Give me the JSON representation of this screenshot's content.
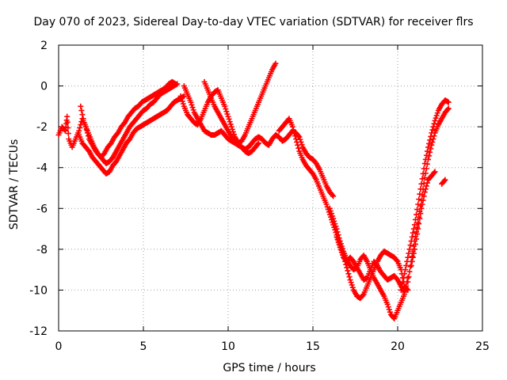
{
  "chart_data": {
    "type": "scatter",
    "title": "Day 070 of 2023, Sidereal Day-to-day VTEC variation (SDTVAR) for receiver flrs",
    "xlabel": "GPS time / hours",
    "ylabel": "SDTVAR / TECUs",
    "xlim": [
      0,
      25
    ],
    "ylim": [
      -12,
      2
    ],
    "xticks": [
      "0",
      "5",
      "10",
      "15",
      "20",
      "25"
    ],
    "yticks": [
      "2",
      "0",
      "-2",
      "-4",
      "-6",
      "-8",
      "-10",
      "-12"
    ],
    "grid": true,
    "marker": "+",
    "color": "#ff0000",
    "series": [
      {
        "points": [
          [
            0.0,
            -2.4
          ],
          [
            0.2,
            -2.0
          ],
          [
            0.4,
            -2.2
          ],
          [
            0.5,
            -1.5
          ],
          [
            0.6,
            -2.6
          ],
          [
            0.8,
            -3.0
          ],
          [
            1.0,
            -2.6
          ],
          [
            1.2,
            -2.2
          ],
          [
            1.4,
            -1.6
          ],
          [
            1.6,
            -2.0
          ],
          [
            1.8,
            -2.6
          ],
          [
            2.0,
            -2.9
          ],
          [
            2.2,
            -3.2
          ],
          [
            2.4,
            -3.4
          ],
          [
            2.6,
            -3.6
          ],
          [
            2.8,
            -3.8
          ],
          [
            3.0,
            -3.7
          ],
          [
            3.2,
            -3.5
          ],
          [
            3.4,
            -3.2
          ],
          [
            3.6,
            -2.9
          ],
          [
            3.8,
            -2.6
          ],
          [
            4.0,
            -2.3
          ],
          [
            4.2,
            -2.0
          ],
          [
            4.4,
            -1.8
          ],
          [
            4.6,
            -1.6
          ],
          [
            4.8,
            -1.4
          ],
          [
            5.0,
            -1.2
          ],
          [
            5.2,
            -1.1
          ],
          [
            5.4,
            -0.9
          ],
          [
            5.6,
            -0.8
          ],
          [
            5.8,
            -0.6
          ],
          [
            6.0,
            -0.4
          ],
          [
            6.2,
            -0.3
          ],
          [
            6.4,
            -0.2
          ],
          [
            6.6,
            -0.1
          ],
          [
            6.8,
            0.0
          ],
          [
            7.0,
            0.1
          ]
        ]
      },
      {
        "points": [
          [
            1.2,
            -2.4
          ],
          [
            1.4,
            -2.8
          ],
          [
            1.6,
            -3.0
          ],
          [
            1.8,
            -3.2
          ],
          [
            2.0,
            -3.5
          ],
          [
            2.2,
            -3.7
          ],
          [
            2.4,
            -3.9
          ],
          [
            2.6,
            -4.1
          ],
          [
            2.8,
            -4.3
          ],
          [
            3.0,
            -4.2
          ],
          [
            3.2,
            -3.9
          ],
          [
            3.4,
            -3.7
          ],
          [
            3.6,
            -3.4
          ],
          [
            3.8,
            -3.1
          ],
          [
            4.0,
            -2.8
          ],
          [
            4.2,
            -2.6
          ],
          [
            4.4,
            -2.3
          ],
          [
            4.6,
            -2.1
          ],
          [
            4.8,
            -2.0
          ],
          [
            5.0,
            -1.9
          ],
          [
            5.2,
            -1.8
          ],
          [
            5.4,
            -1.7
          ],
          [
            5.6,
            -1.6
          ],
          [
            5.8,
            -1.5
          ],
          [
            6.0,
            -1.4
          ],
          [
            6.2,
            -1.3
          ],
          [
            6.4,
            -1.2
          ],
          [
            6.6,
            -1.0
          ],
          [
            6.8,
            -0.8
          ],
          [
            7.0,
            -0.7
          ],
          [
            7.2,
            -0.6
          ],
          [
            7.4,
            -0.5
          ]
        ]
      },
      {
        "points": [
          [
            1.3,
            -1.0
          ],
          [
            1.5,
            -1.8
          ],
          [
            1.7,
            -2.2
          ],
          [
            1.9,
            -2.6
          ],
          [
            2.1,
            -3.0
          ],
          [
            2.3,
            -3.3
          ],
          [
            2.5,
            -3.5
          ],
          [
            2.7,
            -3.3
          ],
          [
            2.9,
            -3.0
          ],
          [
            3.1,
            -2.8
          ],
          [
            3.3,
            -2.5
          ],
          [
            3.5,
            -2.3
          ],
          [
            3.7,
            -2.0
          ],
          [
            3.9,
            -1.8
          ],
          [
            4.1,
            -1.5
          ],
          [
            4.3,
            -1.3
          ],
          [
            4.5,
            -1.1
          ],
          [
            4.7,
            -1.0
          ],
          [
            4.9,
            -0.8
          ],
          [
            5.1,
            -0.7
          ],
          [
            5.3,
            -0.6
          ],
          [
            5.5,
            -0.5
          ],
          [
            5.7,
            -0.4
          ],
          [
            5.9,
            -0.3
          ],
          [
            6.1,
            -0.2
          ],
          [
            6.3,
            -0.1
          ],
          [
            6.5,
            0.1
          ],
          [
            6.7,
            0.2
          ],
          [
            6.9,
            0.1
          ]
        ]
      },
      {
        "points": [
          [
            7.4,
            0.0
          ],
          [
            7.6,
            -0.4
          ],
          [
            7.8,
            -0.8
          ],
          [
            8.0,
            -1.3
          ],
          [
            8.2,
            -1.6
          ],
          [
            8.4,
            -1.9
          ],
          [
            8.6,
            -2.2
          ],
          [
            8.8,
            -2.3
          ],
          [
            9.0,
            -2.4
          ],
          [
            9.2,
            -2.4
          ],
          [
            9.4,
            -2.3
          ],
          [
            9.6,
            -2.2
          ],
          [
            9.8,
            -2.4
          ],
          [
            10.0,
            -2.6
          ],
          [
            10.2,
            -2.7
          ],
          [
            10.4,
            -2.8
          ],
          [
            10.6,
            -2.9
          ],
          [
            10.8,
            -3.0
          ],
          [
            11.0,
            -3.1
          ],
          [
            11.2,
            -3.0
          ],
          [
            11.4,
            -2.8
          ],
          [
            11.6,
            -2.6
          ],
          [
            11.8,
            -2.5
          ],
          [
            12.0,
            -2.6
          ],
          [
            12.2,
            -2.8
          ],
          [
            12.4,
            -2.9
          ],
          [
            12.6,
            -2.6
          ],
          [
            12.8,
            -2.4
          ],
          [
            13.0,
            -2.5
          ],
          [
            13.2,
            -2.7
          ],
          [
            13.4,
            -2.6
          ],
          [
            13.6,
            -2.4
          ],
          [
            13.8,
            -2.2
          ],
          [
            14.0,
            -2.3
          ],
          [
            14.2,
            -2.5
          ],
          [
            14.4,
            -3.0
          ],
          [
            14.6,
            -3.3
          ],
          [
            14.8,
            -3.5
          ],
          [
            15.0,
            -3.6
          ],
          [
            15.2,
            -3.8
          ],
          [
            15.4,
            -4.1
          ],
          [
            15.6,
            -4.5
          ],
          [
            15.8,
            -4.9
          ],
          [
            16.0,
            -5.2
          ],
          [
            16.2,
            -5.4
          ]
        ]
      },
      {
        "points": [
          [
            7.2,
            -0.5
          ],
          [
            7.4,
            -1.0
          ],
          [
            7.6,
            -1.4
          ],
          [
            7.8,
            -1.6
          ],
          [
            8.0,
            -1.8
          ],
          [
            8.2,
            -1.9
          ],
          [
            8.4,
            -1.6
          ],
          [
            8.6,
            -1.2
          ],
          [
            8.8,
            -0.8
          ],
          [
            9.0,
            -0.5
          ],
          [
            9.2,
            -0.3
          ],
          [
            9.4,
            -0.2
          ],
          [
            9.6,
            -0.6
          ],
          [
            9.8,
            -1.0
          ],
          [
            10.0,
            -1.5
          ],
          [
            10.2,
            -2.0
          ],
          [
            10.4,
            -2.5
          ],
          [
            10.6,
            -2.8
          ],
          [
            10.8,
            -2.7
          ],
          [
            11.0,
            -2.4
          ],
          [
            11.2,
            -2.0
          ],
          [
            11.4,
            -1.6
          ],
          [
            11.6,
            -1.2
          ],
          [
            11.8,
            -0.8
          ],
          [
            12.0,
            -0.4
          ],
          [
            12.2,
            0.0
          ],
          [
            12.4,
            0.4
          ],
          [
            12.6,
            0.8
          ],
          [
            12.8,
            1.1
          ]
        ]
      },
      {
        "points": [
          [
            8.6,
            0.2
          ],
          [
            8.8,
            -0.2
          ],
          [
            9.0,
            -0.6
          ],
          [
            9.2,
            -1.0
          ],
          [
            9.4,
            -1.3
          ],
          [
            9.6,
            -1.6
          ],
          [
            9.8,
            -1.9
          ],
          [
            10.0,
            -2.2
          ],
          [
            10.2,
            -2.5
          ],
          [
            10.4,
            -2.7
          ],
          [
            10.6,
            -2.9
          ],
          [
            10.8,
            -3.0
          ],
          [
            11.0,
            -3.2
          ],
          [
            11.2,
            -3.3
          ],
          [
            11.4,
            -3.2
          ],
          [
            11.6,
            -3.0
          ],
          [
            11.8,
            -2.8
          ]
        ]
      },
      {
        "points": [
          [
            13.0,
            -2.2
          ],
          [
            13.2,
            -2.0
          ],
          [
            13.4,
            -1.8
          ],
          [
            13.6,
            -1.6
          ],
          [
            13.8,
            -2.0
          ],
          [
            14.0,
            -2.6
          ],
          [
            14.2,
            -3.2
          ],
          [
            14.4,
            -3.6
          ],
          [
            14.6,
            -3.9
          ],
          [
            14.8,
            -4.1
          ],
          [
            15.0,
            -4.3
          ],
          [
            15.2,
            -4.6
          ],
          [
            15.4,
            -5.0
          ],
          [
            15.6,
            -5.4
          ],
          [
            15.8,
            -5.8
          ],
          [
            16.0,
            -6.3
          ],
          [
            16.2,
            -6.8
          ],
          [
            16.4,
            -7.3
          ],
          [
            16.6,
            -7.8
          ],
          [
            16.8,
            -8.3
          ],
          [
            17.0,
            -8.9
          ],
          [
            17.2,
            -9.5
          ],
          [
            17.4,
            -10.0
          ],
          [
            17.6,
            -10.3
          ],
          [
            17.8,
            -10.4
          ],
          [
            18.0,
            -10.2
          ],
          [
            18.2,
            -9.8
          ],
          [
            18.4,
            -9.4
          ],
          [
            18.6,
            -9.0
          ],
          [
            18.8,
            -8.6
          ],
          [
            19.0,
            -8.3
          ],
          [
            19.2,
            -8.1
          ],
          [
            19.4,
            -8.2
          ],
          [
            19.6,
            -8.3
          ],
          [
            19.8,
            -8.4
          ],
          [
            20.0,
            -8.6
          ],
          [
            20.2,
            -9.0
          ],
          [
            20.4,
            -9.8
          ],
          [
            20.6,
            -10.0
          ]
        ]
      },
      {
        "points": [
          [
            16.0,
            -6.0
          ],
          [
            16.2,
            -6.5
          ],
          [
            16.4,
            -7.0
          ],
          [
            16.6,
            -7.6
          ],
          [
            16.8,
            -8.1
          ],
          [
            17.0,
            -8.5
          ],
          [
            17.2,
            -8.8
          ],
          [
            17.4,
            -9.0
          ],
          [
            17.6,
            -8.9
          ],
          [
            17.8,
            -8.5
          ],
          [
            18.0,
            -8.3
          ],
          [
            18.2,
            -8.6
          ],
          [
            18.4,
            -9.0
          ],
          [
            18.6,
            -9.4
          ],
          [
            18.8,
            -9.7
          ],
          [
            19.0,
            -10.0
          ],
          [
            19.2,
            -10.3
          ],
          [
            19.4,
            -10.7
          ],
          [
            19.6,
            -11.2
          ],
          [
            19.8,
            -11.4
          ],
          [
            20.0,
            -11.0
          ],
          [
            20.2,
            -10.6
          ],
          [
            20.4,
            -10.2
          ],
          [
            20.6,
            -9.4
          ]
        ]
      },
      {
        "points": [
          [
            16.4,
            -7.4
          ],
          [
            16.6,
            -7.9
          ],
          [
            16.8,
            -8.4
          ],
          [
            17.0,
            -8.6
          ],
          [
            17.2,
            -8.4
          ],
          [
            17.4,
            -8.6
          ],
          [
            17.6,
            -8.9
          ],
          [
            17.8,
            -9.2
          ],
          [
            18.0,
            -9.5
          ],
          [
            18.2,
            -9.4
          ],
          [
            18.4,
            -9.0
          ],
          [
            18.6,
            -8.6
          ],
          [
            18.8,
            -8.8
          ],
          [
            19.0,
            -9.1
          ],
          [
            19.2,
            -9.3
          ],
          [
            19.4,
            -9.5
          ],
          [
            19.6,
            -9.4
          ],
          [
            19.8,
            -9.3
          ],
          [
            20.0,
            -9.5
          ],
          [
            20.2,
            -9.8
          ],
          [
            20.4,
            -10.1
          ]
        ]
      },
      {
        "points": [
          [
            20.2,
            -10.0
          ],
          [
            20.4,
            -9.2
          ],
          [
            20.6,
            -8.4
          ],
          [
            20.8,
            -7.6
          ],
          [
            21.0,
            -6.8
          ],
          [
            21.2,
            -5.8
          ],
          [
            21.4,
            -4.8
          ],
          [
            21.6,
            -3.8
          ],
          [
            21.8,
            -3.0
          ],
          [
            22.0,
            -2.3
          ],
          [
            22.2,
            -1.7
          ],
          [
            22.4,
            -1.2
          ],
          [
            22.6,
            -0.9
          ],
          [
            22.8,
            -0.7
          ],
          [
            23.0,
            -0.8
          ]
        ]
      },
      {
        "points": [
          [
            20.6,
            -9.6
          ],
          [
            20.8,
            -8.6
          ],
          [
            21.0,
            -7.6
          ],
          [
            21.2,
            -6.7
          ],
          [
            21.4,
            -5.6
          ],
          [
            21.6,
            -4.5
          ],
          [
            21.8,
            -3.6
          ],
          [
            22.0,
            -2.9
          ],
          [
            22.2,
            -2.3
          ],
          [
            22.4,
            -1.9
          ],
          [
            22.6,
            -1.6
          ],
          [
            22.8,
            -1.3
          ],
          [
            23.0,
            -1.1
          ]
        ]
      },
      {
        "points": [
          [
            20.8,
            -8.8
          ],
          [
            21.0,
            -8.0
          ],
          [
            21.2,
            -7.0
          ],
          [
            21.4,
            -6.0
          ],
          [
            21.6,
            -5.2
          ],
          [
            21.8,
            -4.6
          ],
          [
            22.0,
            -4.4
          ],
          [
            22.2,
            -4.2
          ]
        ]
      },
      {
        "points": [
          [
            22.6,
            -4.8
          ],
          [
            22.8,
            -4.6
          ]
        ]
      }
    ]
  }
}
